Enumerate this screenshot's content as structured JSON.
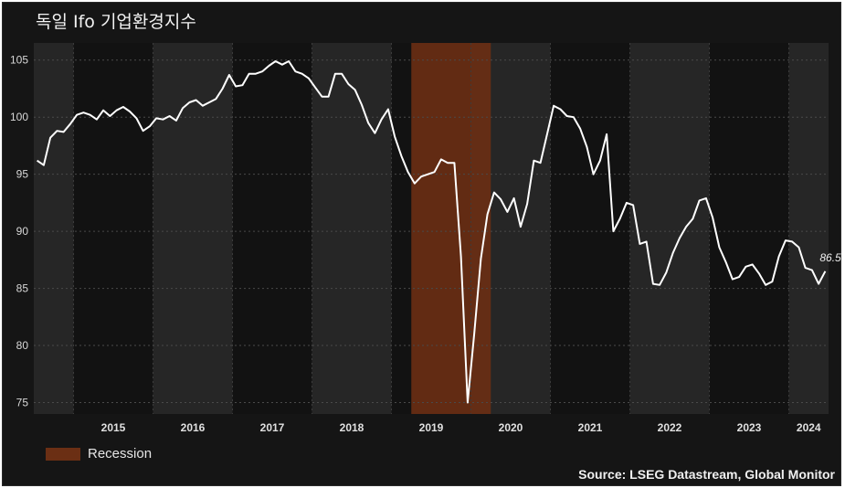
{
  "chart_data": {
    "type": "line",
    "title": "독일 Ifo 기업환경지수",
    "series": [
      {
        "values": [
          96.2,
          95.8,
          98.2,
          98.8,
          98.7,
          99.4,
          100.2,
          100.4,
          100.2,
          99.8,
          100.6,
          100.1,
          100.6,
          100.9,
          100.5,
          99.9,
          98.8,
          99.2,
          99.9,
          99.8,
          100.1,
          99.7,
          100.8,
          101.3,
          101.5,
          101.0,
          101.3,
          101.6,
          102.5,
          103.7,
          102.7,
          102.8,
          103.8,
          103.8,
          104.0,
          104.5,
          104.9,
          104.6,
          104.9,
          104.0,
          103.8,
          103.4,
          102.6,
          101.8,
          101.8,
          103.8,
          103.8,
          102.9,
          102.4,
          101.1,
          99.5,
          98.6,
          99.8,
          100.7,
          98.3,
          96.6,
          95.2,
          94.2,
          94.8,
          95.0,
          95.2,
          96.3,
          96.0,
          96.0,
          87.8,
          75.0,
          81.0,
          87.6,
          91.5,
          93.4,
          92.8,
          91.7,
          92.9,
          90.4,
          92.4,
          96.2,
          96.0,
          98.5,
          101.0,
          100.7,
          100.1,
          100.0,
          99.0,
          97.4,
          95.0,
          96.2,
          98.5,
          90.0,
          91.1,
          92.5,
          92.3,
          88.9,
          89.1,
          85.4,
          85.3,
          86.4,
          88.1,
          89.4,
          90.4,
          91.1,
          92.7,
          92.9,
          91.2,
          88.6,
          87.3,
          85.8,
          86.0,
          86.9,
          87.1,
          86.3,
          85.3,
          85.6,
          87.8,
          89.2,
          89.1,
          88.6,
          86.8,
          86.6,
          85.4,
          86.5
        ],
        "x_start": "2014-07",
        "frequency": "monthly",
        "end_label": "86.5"
      }
    ],
    "x_ticks": [
      "2015",
      "2016",
      "2017",
      "2018",
      "2019",
      "2020",
      "2021",
      "2022",
      "2023",
      "2024"
    ],
    "y_ticks": [
      75,
      80,
      85,
      90,
      95,
      100,
      105
    ],
    "ylim": [
      74,
      106.5
    ],
    "shaded_regions": [
      {
        "name": "Recession",
        "start": "2019-04",
        "end": "2020-03",
        "color": "#6b2f14"
      }
    ],
    "legend": {
      "label": "Recession",
      "placement": "bottom-left"
    },
    "grid": true,
    "source": "Source: LSEG Datastream, Global Monitor",
    "colors": {
      "line": "#ffffff",
      "background": "#151515",
      "band_light": "#262626",
      "band_dark": "#121212",
      "recession": "#6b2f14"
    }
  }
}
